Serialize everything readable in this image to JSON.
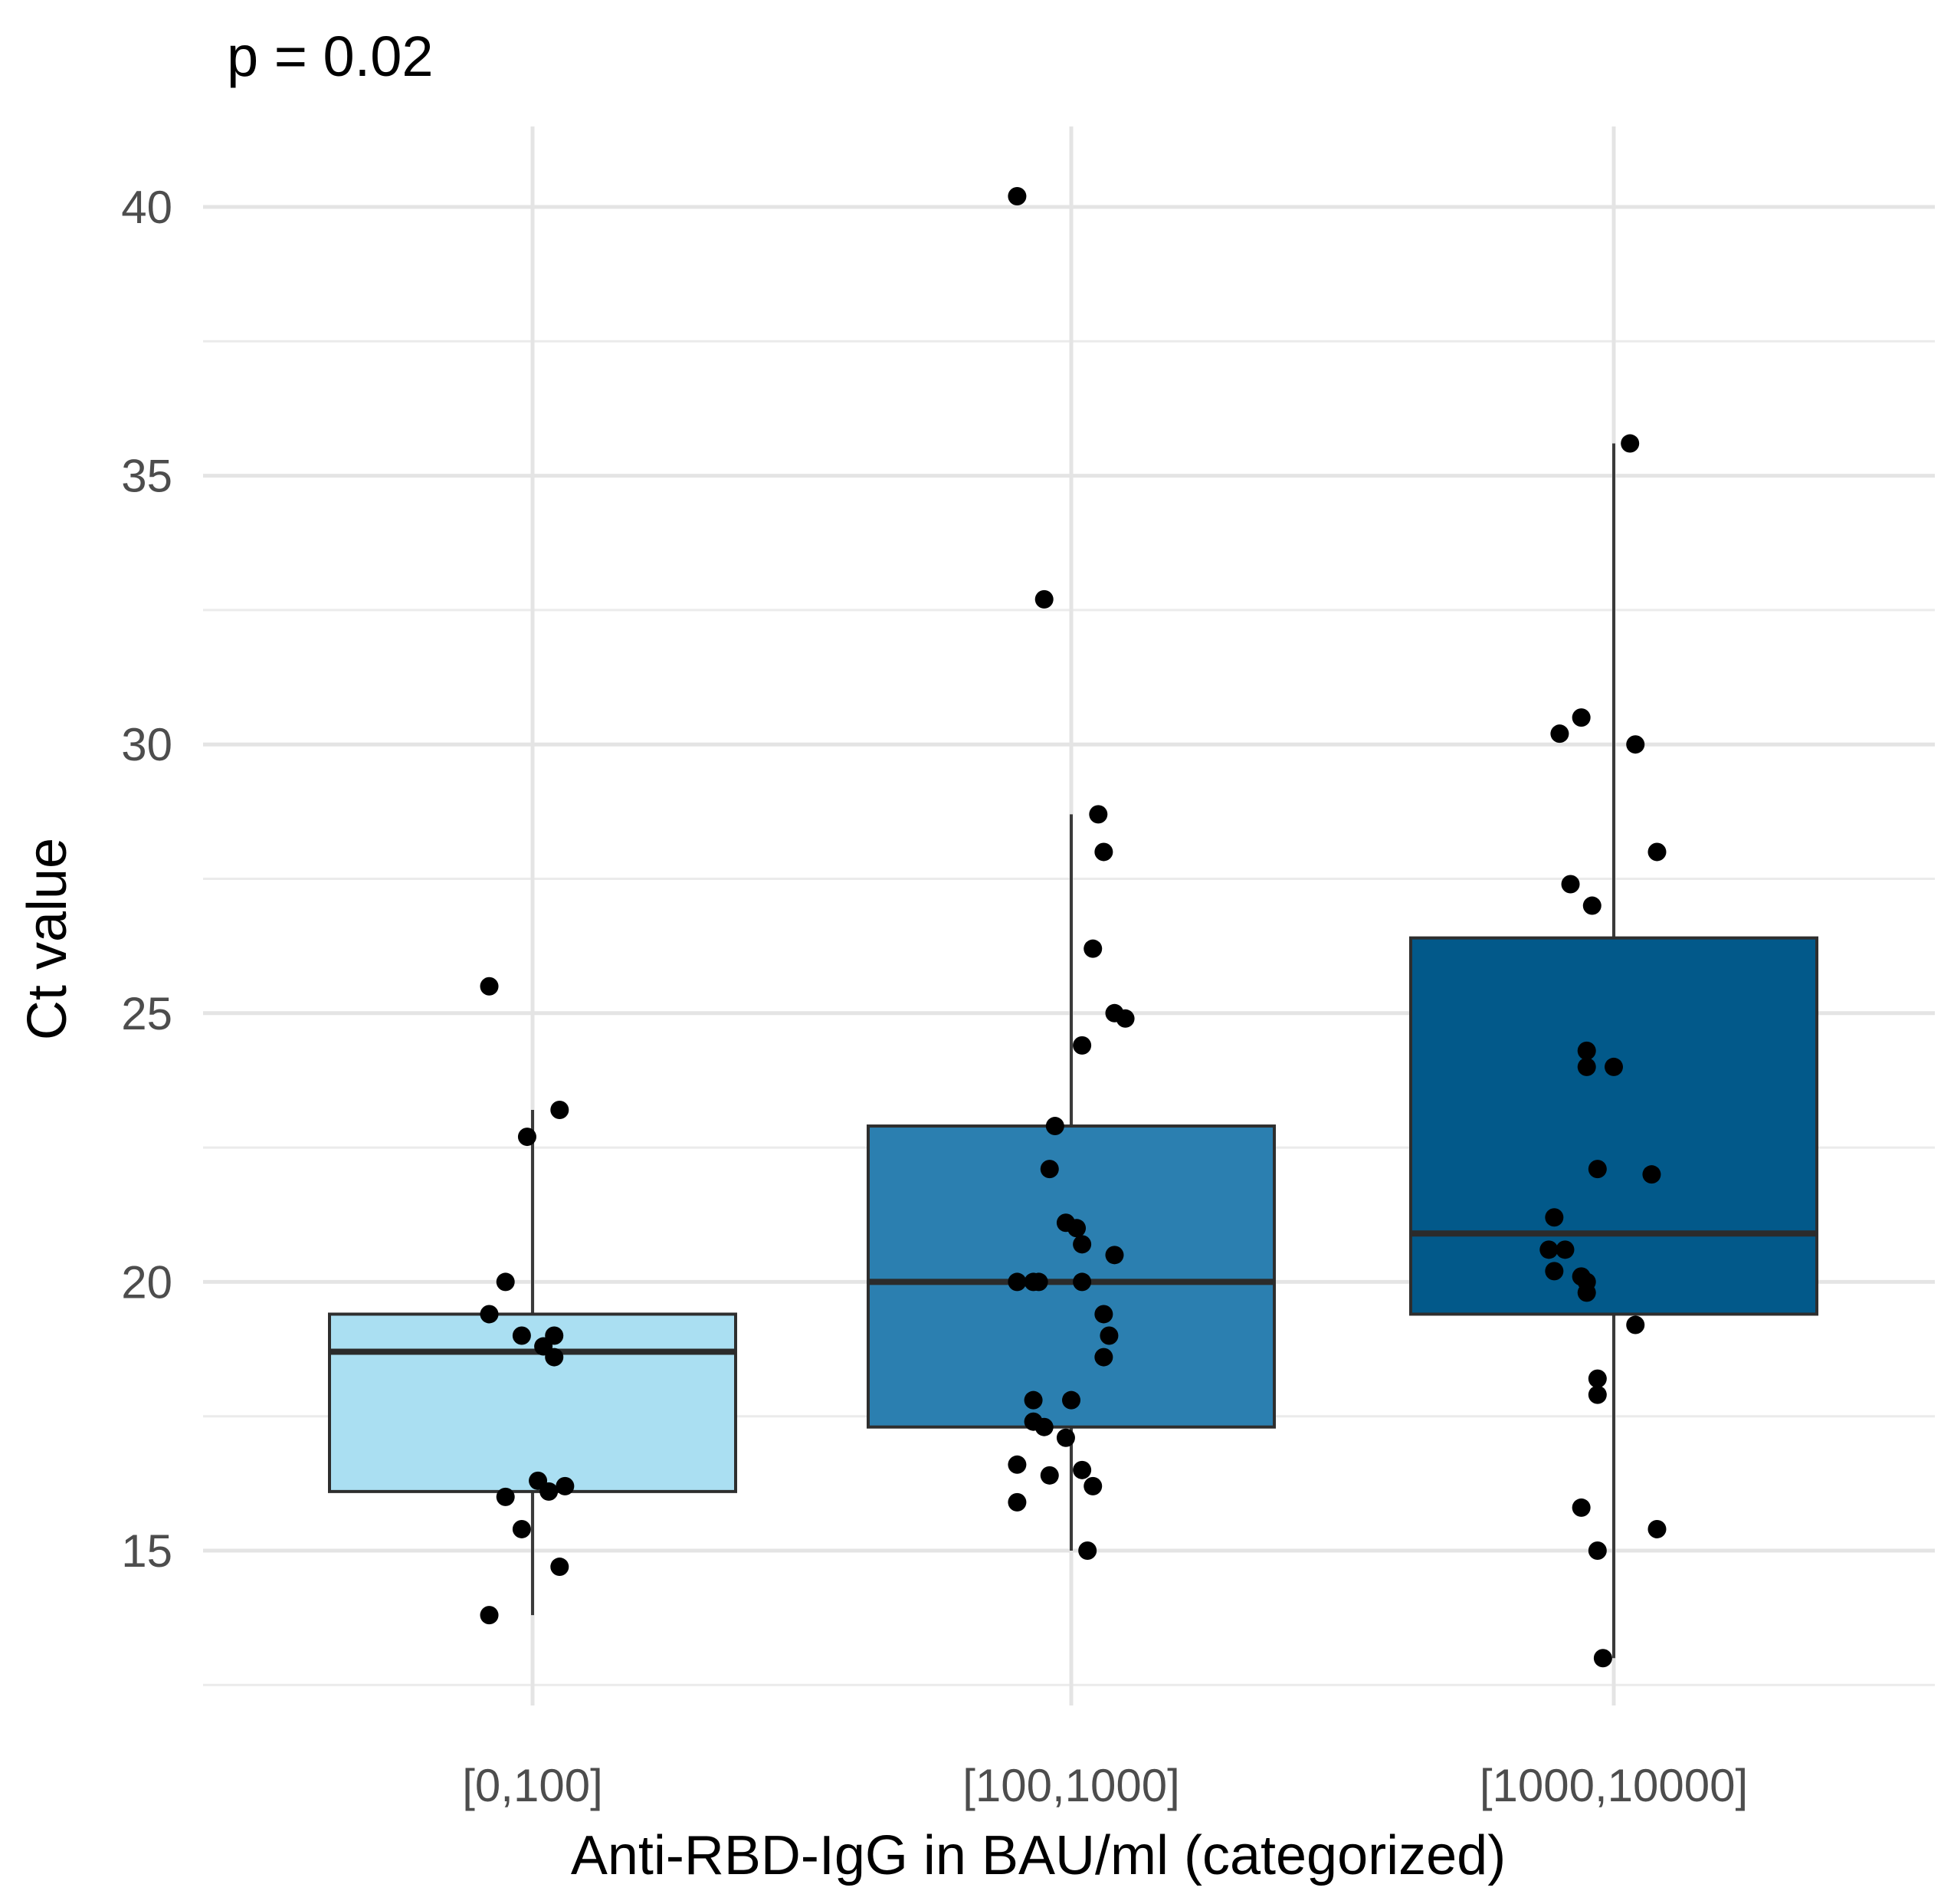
{
  "chart_data": {
    "type": "boxplot",
    "title": "",
    "annotation": "p = 0.02",
    "xlabel": "Anti-RBD-IgG in BAU/ml (categorized)",
    "ylabel": "Ct value",
    "ylim": [
      12.0,
      41.5
    ],
    "yticks": [
      15,
      20,
      25,
      30,
      35,
      40
    ],
    "grid": true,
    "legend": "none",
    "categories": [
      "[0,100]",
      "[100,1000]",
      "[1000,10000]"
    ],
    "colors": [
      "#aadff2",
      "#2b7fb0",
      "#02598a"
    ],
    "boxes": [
      {
        "category": "[0,100]",
        "whisker_low": 13.8,
        "q1": 16.1,
        "median": 18.7,
        "q3": 19.4,
        "whisker_high": 23.2
      },
      {
        "category": "[100,1000]",
        "whisker_low": 15.0,
        "q1": 17.3,
        "median": 20.0,
        "q3": 22.9,
        "whisker_high": 28.7
      },
      {
        "category": "[1000,10000]",
        "whisker_low": 13.0,
        "q1": 19.4,
        "median": 20.9,
        "q3": 26.4,
        "whisker_high": 35.6
      }
    ],
    "points": [
      [
        {
          "jitter": -0.08,
          "y": 25.5
        },
        {
          "jitter": 0.05,
          "y": 23.2
        },
        {
          "jitter": -0.01,
          "y": 22.7
        },
        {
          "jitter": -0.05,
          "y": 20.0
        },
        {
          "jitter": -0.08,
          "y": 19.4
        },
        {
          "jitter": -0.02,
          "y": 19.0
        },
        {
          "jitter": 0.04,
          "y": 19.0
        },
        {
          "jitter": 0.02,
          "y": 18.8
        },
        {
          "jitter": 0.04,
          "y": 18.6
        },
        {
          "jitter": 0.01,
          "y": 16.3
        },
        {
          "jitter": 0.06,
          "y": 16.2
        },
        {
          "jitter": 0.03,
          "y": 16.1
        },
        {
          "jitter": -0.05,
          "y": 16.0
        },
        {
          "jitter": -0.02,
          "y": 15.4
        },
        {
          "jitter": 0.05,
          "y": 14.7
        },
        {
          "jitter": -0.08,
          "y": 13.8
        }
      ],
      [
        {
          "jitter": -0.1,
          "y": 40.2
        },
        {
          "jitter": -0.05,
          "y": 32.7
        },
        {
          "jitter": 0.05,
          "y": 28.7
        },
        {
          "jitter": 0.06,
          "y": 28.0
        },
        {
          "jitter": 0.04,
          "y": 26.2
        },
        {
          "jitter": 0.08,
          "y": 25.0
        },
        {
          "jitter": 0.1,
          "y": 24.9
        },
        {
          "jitter": 0.02,
          "y": 24.4
        },
        {
          "jitter": -0.03,
          "y": 22.9
        },
        {
          "jitter": -0.04,
          "y": 22.1
        },
        {
          "jitter": -0.01,
          "y": 21.1
        },
        {
          "jitter": 0.01,
          "y": 21.0
        },
        {
          "jitter": 0.02,
          "y": 20.7
        },
        {
          "jitter": 0.08,
          "y": 20.5
        },
        {
          "jitter": -0.1,
          "y": 20.0
        },
        {
          "jitter": -0.07,
          "y": 20.0
        },
        {
          "jitter": -0.06,
          "y": 20.0
        },
        {
          "jitter": 0.02,
          "y": 20.0
        },
        {
          "jitter": 0.06,
          "y": 19.4
        },
        {
          "jitter": 0.07,
          "y": 19.0
        },
        {
          "jitter": 0.06,
          "y": 18.6
        },
        {
          "jitter": -0.07,
          "y": 17.8
        },
        {
          "jitter": 0.0,
          "y": 17.8
        },
        {
          "jitter": -0.07,
          "y": 17.4
        },
        {
          "jitter": -0.05,
          "y": 17.3
        },
        {
          "jitter": -0.01,
          "y": 17.1
        },
        {
          "jitter": -0.1,
          "y": 16.6
        },
        {
          "jitter": 0.02,
          "y": 16.5
        },
        {
          "jitter": -0.04,
          "y": 16.4
        },
        {
          "jitter": 0.04,
          "y": 16.2
        },
        {
          "jitter": -0.1,
          "y": 15.9
        },
        {
          "jitter": 0.03,
          "y": 15.0
        }
      ],
      [
        {
          "jitter": 0.03,
          "y": 35.6
        },
        {
          "jitter": -0.06,
          "y": 30.5
        },
        {
          "jitter": -0.1,
          "y": 30.2
        },
        {
          "jitter": 0.04,
          "y": 30.0
        },
        {
          "jitter": 0.08,
          "y": 28.0
        },
        {
          "jitter": -0.08,
          "y": 27.4
        },
        {
          "jitter": -0.04,
          "y": 27.0
        },
        {
          "jitter": -0.05,
          "y": 24.3
        },
        {
          "jitter": -0.05,
          "y": 24.0
        },
        {
          "jitter": 0.0,
          "y": 24.0
        },
        {
          "jitter": -0.03,
          "y": 22.1
        },
        {
          "jitter": 0.07,
          "y": 22.0
        },
        {
          "jitter": -0.11,
          "y": 21.2
        },
        {
          "jitter": -0.12,
          "y": 20.6
        },
        {
          "jitter": -0.09,
          "y": 20.6
        },
        {
          "jitter": -0.11,
          "y": 20.2
        },
        {
          "jitter": -0.06,
          "y": 20.1
        },
        {
          "jitter": -0.05,
          "y": 20.0
        },
        {
          "jitter": -0.05,
          "y": 19.8
        },
        {
          "jitter": 0.04,
          "y": 19.2
        },
        {
          "jitter": -0.03,
          "y": 18.2
        },
        {
          "jitter": -0.03,
          "y": 17.9
        },
        {
          "jitter": -0.06,
          "y": 15.8
        },
        {
          "jitter": 0.08,
          "y": 15.4
        },
        {
          "jitter": -0.03,
          "y": 15.0
        },
        {
          "jitter": -0.02,
          "y": 13.0
        }
      ]
    ]
  }
}
